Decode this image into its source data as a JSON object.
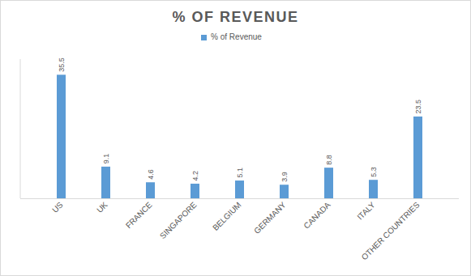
{
  "chart_data": {
    "type": "bar",
    "title": "% OF REVENUE",
    "categories": [
      "US",
      "UK",
      "FRANCE",
      "SINGAPORE",
      "BELGIUM",
      "GERMANY",
      "CANADA",
      "ITALY",
      "OTHER COUNTRIES"
    ],
    "series": [
      {
        "name": "% of Revenue",
        "color": "#5b9bd5",
        "values": [
          35.5,
          9.1,
          4.6,
          4.2,
          5.1,
          3.9,
          8.8,
          5.3,
          23.5
        ]
      }
    ],
    "ylim": [
      0,
      40
    ],
    "grid": false,
    "legend": "top",
    "data_labels": true,
    "tick_labels": "x"
  }
}
